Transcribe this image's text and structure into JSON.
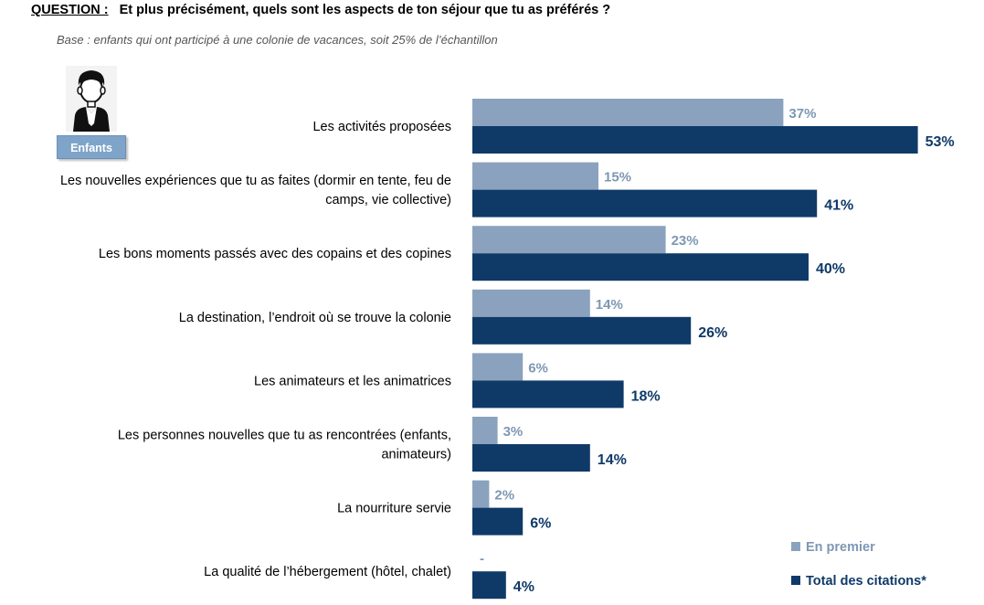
{
  "header": {
    "question_label": "QUESTION :",
    "question_text": "Et plus précisément, quels sont les aspects de ton séjour que tu as préférés ?",
    "base_text": "Base : enfants qui ont participé à une colonie de vacances, soit 25% de l’échantillon"
  },
  "badge": {
    "label": "Enfants"
  },
  "colors": {
    "light": "#8aa2bd",
    "dark": "#0f3a68",
    "light_text": "#7e97b3",
    "dark_text": "#0f3a68"
  },
  "legend": {
    "en_premier": "En premier",
    "total": "Total des citations*"
  },
  "chart_data": {
    "type": "bar",
    "orientation": "horizontal",
    "categories": [
      "Les activités proposées",
      "Les nouvelles expériences que tu as faites (dormir en tente, feu de camps, vie collective)",
      "Les bons moments passés avec des copains et des copines",
      "La destination, l’endroit où se trouve la colonie",
      "Les animateurs et les animatrices",
      "Les personnes nouvelles que tu as rencontrées (enfants, animateurs)",
      "La nourriture servie",
      "La qualité de l’hébergement (hôtel, chalet)"
    ],
    "category_lines": [
      [
        "Les activités proposées"
      ],
      [
        "Les nouvelles expériences que tu as faites (dormir en tente, feu de",
        "camps, vie collective)"
      ],
      [
        "Les bons moments passés avec des copains et des copines"
      ],
      [
        "La destination, l’endroit où se trouve la colonie"
      ],
      [
        "Les animateurs et les animatrices"
      ],
      [
        "Les personnes nouvelles que tu as rencontrées (enfants,",
        "animateurs)"
      ],
      [
        "La nourriture servie"
      ],
      [
        "La qualité de l’hébergement (hôtel, chalet)"
      ]
    ],
    "series": [
      {
        "name": "En premier",
        "values": [
          37,
          15,
          23,
          14,
          6,
          3,
          2,
          null
        ],
        "labels": [
          "37%",
          "15%",
          "23%",
          "14%",
          "6%",
          "3%",
          "2%",
          "-"
        ]
      },
      {
        "name": "Total des citations*",
        "values": [
          53,
          41,
          40,
          26,
          18,
          14,
          6,
          4
        ],
        "labels": [
          "53%",
          "41%",
          "40%",
          "26%",
          "18%",
          "14%",
          "6%",
          "4%"
        ]
      }
    ],
    "xlim": [
      0,
      100
    ],
    "legend_position": "bottom-right",
    "grid": false
  }
}
